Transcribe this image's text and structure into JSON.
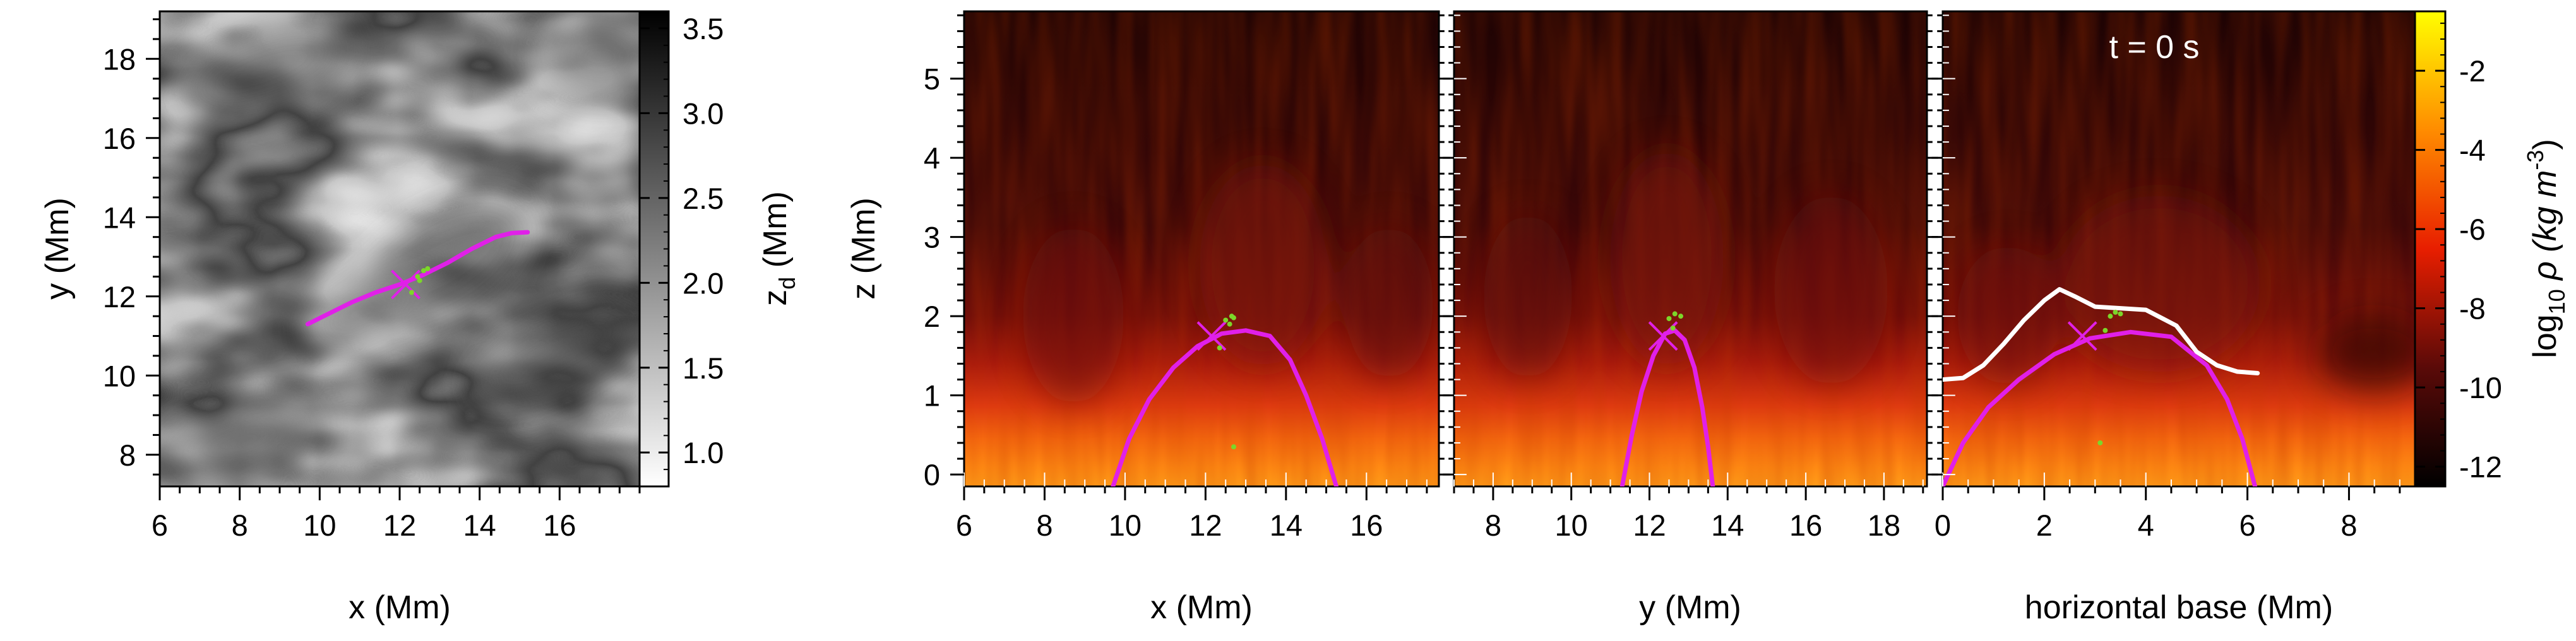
{
  "chart_data": [
    {
      "type": "heatmap",
      "id": "panel1",
      "xlabel": "x (Mm)",
      "ylabel": "y (Mm)",
      "xlim": [
        6,
        18
      ],
      "ylim": [
        7.2,
        19.2
      ],
      "x_ticks": [
        6,
        8,
        10,
        12,
        14,
        16
      ],
      "y_ticks": [
        8,
        10,
        12,
        14,
        16,
        18
      ],
      "colorbar": {
        "label_main": "z",
        "label_sub": "d",
        "label_unit": " (Mm)",
        "range": [
          0.8,
          3.6
        ],
        "ticks": [
          1.0,
          1.5,
          2.0,
          2.5,
          3.0,
          3.5
        ],
        "tick_labels": [
          "1.0",
          "1.5",
          "2.0",
          "2.5",
          "3.0",
          "3.5"
        ],
        "colormap": "gray: white (low) to black (high)",
        "color_low": "#ffffff",
        "color_high": "#000000"
      },
      "curve_color": "#e020e8",
      "curve": [
        [
          9.7,
          11.3
        ],
        [
          10.2,
          11.55
        ],
        [
          10.8,
          11.85
        ],
        [
          11.4,
          12.1
        ],
        [
          12.0,
          12.3
        ],
        [
          12.6,
          12.55
        ],
        [
          13.2,
          12.85
        ],
        [
          13.8,
          13.2
        ],
        [
          14.4,
          13.5
        ],
        [
          14.8,
          13.6
        ],
        [
          15.2,
          13.62
        ]
      ],
      "marker_x": [
        12.15,
        12.3
      ],
      "green_points": [
        [
          12.45,
          12.5
        ],
        [
          12.6,
          12.65
        ],
        [
          12.7,
          12.7
        ],
        [
          12.5,
          12.4
        ],
        [
          12.3,
          12.1
        ]
      ]
    },
    {
      "type": "heatmap",
      "id": "panel2",
      "xlabel": "x (Mm)",
      "ylabel": "z (Mm)",
      "xlim": [
        6,
        17.8
      ],
      "ylim": [
        -0.15,
        5.85
      ],
      "x_ticks": [
        6,
        8,
        10,
        12,
        14,
        16
      ],
      "y_ticks": [
        0,
        1,
        2,
        3,
        4,
        5
      ],
      "curve_color": "#e020e8",
      "curve": [
        [
          9.7,
          -0.15
        ],
        [
          10.1,
          0.45
        ],
        [
          10.6,
          0.95
        ],
        [
          11.2,
          1.35
        ],
        [
          11.8,
          1.62
        ],
        [
          12.4,
          1.78
        ],
        [
          13.0,
          1.82
        ],
        [
          13.6,
          1.75
        ],
        [
          14.1,
          1.45
        ],
        [
          14.5,
          1.0
        ],
        [
          14.9,
          0.45
        ],
        [
          15.25,
          -0.15
        ]
      ],
      "marker_x": [
        12.15,
        1.75
      ],
      "green_points": [
        [
          12.5,
          1.95
        ],
        [
          12.65,
          2.0
        ],
        [
          12.7,
          1.98
        ],
        [
          12.6,
          1.9
        ],
        [
          12.35,
          1.6
        ],
        [
          12.7,
          0.35
        ]
      ]
    },
    {
      "type": "heatmap",
      "id": "panel3",
      "xlabel": "y (Mm)",
      "xlim": [
        7,
        19.1
      ],
      "ylim": [
        -0.15,
        5.85
      ],
      "x_ticks": [
        8,
        10,
        12,
        14,
        16,
        18
      ],
      "curve_color": "#e020e8",
      "curve": [
        [
          11.3,
          -0.15
        ],
        [
          11.55,
          0.5
        ],
        [
          11.8,
          1.05
        ],
        [
          12.1,
          1.5
        ],
        [
          12.4,
          1.78
        ],
        [
          12.65,
          1.82
        ],
        [
          12.9,
          1.7
        ],
        [
          13.15,
          1.35
        ],
        [
          13.35,
          0.85
        ],
        [
          13.5,
          0.35
        ],
        [
          13.62,
          -0.15
        ]
      ],
      "marker_x": [
        12.35,
        1.75
      ],
      "green_points": [
        [
          12.5,
          1.97
        ],
        [
          12.65,
          2.03
        ],
        [
          12.8,
          2.0
        ],
        [
          12.6,
          1.85
        ]
      ]
    },
    {
      "type": "heatmap",
      "id": "panel4",
      "xlabel": "horizontal base (Mm)",
      "xlim": [
        0,
        9.3
      ],
      "ylim": [
        -0.15,
        5.85
      ],
      "x_ticks": [
        0,
        2,
        4,
        6,
        8
      ],
      "annotation": "t = 0 s",
      "colorbar": {
        "label_pre": "log",
        "label_sub": "10",
        "label_mid": " ρ (kg m",
        "label_sup": "-3",
        "label_post": ")",
        "range": [
          -12.5,
          -0.5
        ],
        "ticks": [
          -12,
          -10,
          -8,
          -6,
          -4,
          -2
        ],
        "tick_labels": [
          "-12",
          "-10",
          "-8",
          "-6",
          "-4",
          "-2"
        ],
        "colormap": "black-red-yellow",
        "color_low": "#000000",
        "color_mid": "#e81e00",
        "color_high": "#ffff00"
      },
      "curve_color": "#e020e8",
      "curve": [
        [
          0.0,
          -0.15
        ],
        [
          0.4,
          0.4
        ],
        [
          0.9,
          0.85
        ],
        [
          1.5,
          1.2
        ],
        [
          2.2,
          1.52
        ],
        [
          2.9,
          1.72
        ],
        [
          3.7,
          1.8
        ],
        [
          4.5,
          1.74
        ],
        [
          5.2,
          1.38
        ],
        [
          5.6,
          0.95
        ],
        [
          5.9,
          0.45
        ],
        [
          6.15,
          -0.15
        ]
      ],
      "white_curve_color": "#ffffff",
      "white_curve": [
        [
          0.0,
          1.2
        ],
        [
          0.4,
          1.22
        ],
        [
          0.8,
          1.38
        ],
        [
          1.2,
          1.65
        ],
        [
          1.6,
          1.95
        ],
        [
          2.0,
          2.2
        ],
        [
          2.3,
          2.34
        ],
        [
          2.6,
          2.25
        ],
        [
          3.0,
          2.12
        ],
        [
          3.5,
          2.1
        ],
        [
          4.0,
          2.08
        ],
        [
          4.6,
          1.88
        ],
        [
          5.0,
          1.55
        ],
        [
          5.4,
          1.38
        ],
        [
          5.8,
          1.3
        ],
        [
          6.2,
          1.28
        ]
      ],
      "marker_x": [
        2.75,
        1.75
      ],
      "green_points": [
        [
          3.3,
          2.0
        ],
        [
          3.4,
          2.05
        ],
        [
          3.5,
          2.03
        ],
        [
          3.2,
          1.82
        ],
        [
          3.1,
          0.4
        ]
      ]
    }
  ]
}
